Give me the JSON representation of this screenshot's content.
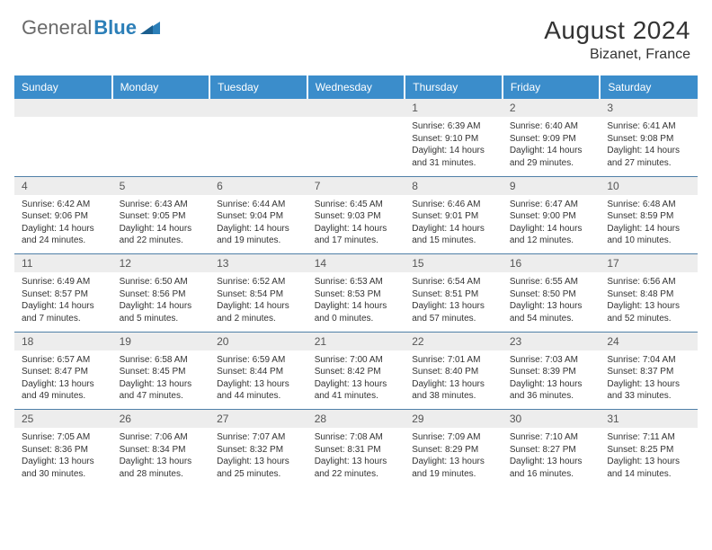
{
  "brand": {
    "name1": "General",
    "name2": "Blue"
  },
  "title": "August 2024",
  "location": "Bizanet, France",
  "colors": {
    "header_bg": "#3b8dcb",
    "header_text": "#ffffff",
    "daynum_bg": "#ededed",
    "cell_border": "#5080a8",
    "text": "#333333",
    "brand_blue": "#2c7fb8"
  },
  "weekdays": [
    "Sunday",
    "Monday",
    "Tuesday",
    "Wednesday",
    "Thursday",
    "Friday",
    "Saturday"
  ],
  "weeks": [
    [
      null,
      null,
      null,
      null,
      {
        "d": "1",
        "sr": "6:39 AM",
        "ss": "9:10 PM",
        "dl": "14 hours and 31 minutes."
      },
      {
        "d": "2",
        "sr": "6:40 AM",
        "ss": "9:09 PM",
        "dl": "14 hours and 29 minutes."
      },
      {
        "d": "3",
        "sr": "6:41 AM",
        "ss": "9:08 PM",
        "dl": "14 hours and 27 minutes."
      }
    ],
    [
      {
        "d": "4",
        "sr": "6:42 AM",
        "ss": "9:06 PM",
        "dl": "14 hours and 24 minutes."
      },
      {
        "d": "5",
        "sr": "6:43 AM",
        "ss": "9:05 PM",
        "dl": "14 hours and 22 minutes."
      },
      {
        "d": "6",
        "sr": "6:44 AM",
        "ss": "9:04 PM",
        "dl": "14 hours and 19 minutes."
      },
      {
        "d": "7",
        "sr": "6:45 AM",
        "ss": "9:03 PM",
        "dl": "14 hours and 17 minutes."
      },
      {
        "d": "8",
        "sr": "6:46 AM",
        "ss": "9:01 PM",
        "dl": "14 hours and 15 minutes."
      },
      {
        "d": "9",
        "sr": "6:47 AM",
        "ss": "9:00 PM",
        "dl": "14 hours and 12 minutes."
      },
      {
        "d": "10",
        "sr": "6:48 AM",
        "ss": "8:59 PM",
        "dl": "14 hours and 10 minutes."
      }
    ],
    [
      {
        "d": "11",
        "sr": "6:49 AM",
        "ss": "8:57 PM",
        "dl": "14 hours and 7 minutes."
      },
      {
        "d": "12",
        "sr": "6:50 AM",
        "ss": "8:56 PM",
        "dl": "14 hours and 5 minutes."
      },
      {
        "d": "13",
        "sr": "6:52 AM",
        "ss": "8:54 PM",
        "dl": "14 hours and 2 minutes."
      },
      {
        "d": "14",
        "sr": "6:53 AM",
        "ss": "8:53 PM",
        "dl": "14 hours and 0 minutes."
      },
      {
        "d": "15",
        "sr": "6:54 AM",
        "ss": "8:51 PM",
        "dl": "13 hours and 57 minutes."
      },
      {
        "d": "16",
        "sr": "6:55 AM",
        "ss": "8:50 PM",
        "dl": "13 hours and 54 minutes."
      },
      {
        "d": "17",
        "sr": "6:56 AM",
        "ss": "8:48 PM",
        "dl": "13 hours and 52 minutes."
      }
    ],
    [
      {
        "d": "18",
        "sr": "6:57 AM",
        "ss": "8:47 PM",
        "dl": "13 hours and 49 minutes."
      },
      {
        "d": "19",
        "sr": "6:58 AM",
        "ss": "8:45 PM",
        "dl": "13 hours and 47 minutes."
      },
      {
        "d": "20",
        "sr": "6:59 AM",
        "ss": "8:44 PM",
        "dl": "13 hours and 44 minutes."
      },
      {
        "d": "21",
        "sr": "7:00 AM",
        "ss": "8:42 PM",
        "dl": "13 hours and 41 minutes."
      },
      {
        "d": "22",
        "sr": "7:01 AM",
        "ss": "8:40 PM",
        "dl": "13 hours and 38 minutes."
      },
      {
        "d": "23",
        "sr": "7:03 AM",
        "ss": "8:39 PM",
        "dl": "13 hours and 36 minutes."
      },
      {
        "d": "24",
        "sr": "7:04 AM",
        "ss": "8:37 PM",
        "dl": "13 hours and 33 minutes."
      }
    ],
    [
      {
        "d": "25",
        "sr": "7:05 AM",
        "ss": "8:36 PM",
        "dl": "13 hours and 30 minutes."
      },
      {
        "d": "26",
        "sr": "7:06 AM",
        "ss": "8:34 PM",
        "dl": "13 hours and 28 minutes."
      },
      {
        "d": "27",
        "sr": "7:07 AM",
        "ss": "8:32 PM",
        "dl": "13 hours and 25 minutes."
      },
      {
        "d": "28",
        "sr": "7:08 AM",
        "ss": "8:31 PM",
        "dl": "13 hours and 22 minutes."
      },
      {
        "d": "29",
        "sr": "7:09 AM",
        "ss": "8:29 PM",
        "dl": "13 hours and 19 minutes."
      },
      {
        "d": "30",
        "sr": "7:10 AM",
        "ss": "8:27 PM",
        "dl": "13 hours and 16 minutes."
      },
      {
        "d": "31",
        "sr": "7:11 AM",
        "ss": "8:25 PM",
        "dl": "13 hours and 14 minutes."
      }
    ]
  ],
  "labels": {
    "sunrise": "Sunrise: ",
    "sunset": "Sunset: ",
    "daylight": "Daylight: "
  }
}
